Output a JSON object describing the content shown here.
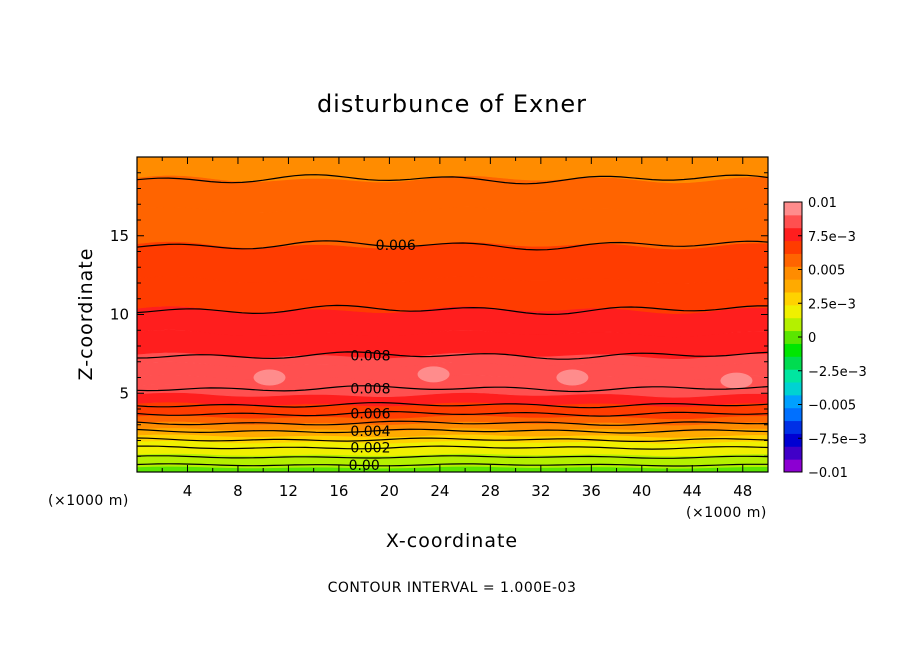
{
  "chart_data": {
    "type": "contour",
    "title": "disturbunce of Exner",
    "xlabel": "X-coordinate",
    "ylabel": "Z-coordinate",
    "x_unit_left": "(×1000 m)",
    "x_unit_right": "(×1000 m)",
    "xlim": [
      0,
      50
    ],
    "ylim": [
      0,
      20
    ],
    "xticks": [
      4,
      8,
      12,
      16,
      20,
      24,
      28,
      32,
      36,
      40,
      44,
      48
    ],
    "yticks": [
      5,
      10,
      15
    ],
    "footer": "CONTOUR INTERVAL = 1.000E-03",
    "contour_interval": 0.001,
    "colorbar": {
      "range": [
        -0.01,
        0.01
      ],
      "tick_values": [
        0.01,
        0.0075,
        0.005,
        0.0025,
        0,
        -0.0025,
        -0.005,
        -0.0075,
        -0.01
      ],
      "tick_labels": [
        "0.01",
        "7.5e−3",
        "0.005",
        "2.5e−3",
        "0",
        "−2.5e−3",
        "−0.005",
        "−7.5e−3",
        "−0.01"
      ],
      "colors": [
        "#8c00d2",
        "#4000c8",
        "#0000d2",
        "#0030e6",
        "#0070ff",
        "#00a0ff",
        "#00d2d2",
        "#00e6a0",
        "#00dc50",
        "#00e600",
        "#5ae600",
        "#b4f000",
        "#f0f000",
        "#ffd200",
        "#ffaa00",
        "#ff8c00",
        "#ff6400",
        "#ff3c00",
        "#ff1e1e",
        "#ff5050",
        "#ff8c8c"
      ]
    },
    "contour_labels": [
      {
        "text": "0.006",
        "x": 20.5,
        "z": 14.4
      },
      {
        "text": "0.008",
        "x": 18.5,
        "z": 7.4
      },
      {
        "text": "0.008",
        "x": 18.5,
        "z": 5.3
      },
      {
        "text": "0.006",
        "x": 18.5,
        "z": 3.7
      },
      {
        "text": "0.004",
        "x": 18.5,
        "z": 2.6
      },
      {
        "text": "0.002",
        "x": 18.5,
        "z": 1.55
      },
      {
        "text": "0.00",
        "x": 18.0,
        "z": 0.45
      }
    ],
    "max_spots": [
      {
        "x": 10.5,
        "z": 6.0
      },
      {
        "x": 23.5,
        "z": 6.2
      },
      {
        "x": 34.5,
        "z": 6.0
      },
      {
        "x": 47.5,
        "z": 5.8
      }
    ],
    "profile": [
      {
        "z": 0.0,
        "value": -0.0003
      },
      {
        "z": 0.3,
        "value": 0.0003
      },
      {
        "z": 0.7,
        "value": 0.0009
      },
      {
        "z": 1.1,
        "value": 0.0015
      },
      {
        "z": 1.5,
        "value": 0.002
      },
      {
        "z": 1.9,
        "value": 0.0027
      },
      {
        "z": 2.3,
        "value": 0.0035
      },
      {
        "z": 2.7,
        "value": 0.0043
      },
      {
        "z": 3.1,
        "value": 0.0051
      },
      {
        "z": 3.5,
        "value": 0.0059
      },
      {
        "z": 3.9,
        "value": 0.0066
      },
      {
        "z": 4.3,
        "value": 0.0073
      },
      {
        "z": 4.9,
        "value": 0.0079
      },
      {
        "z": 5.4,
        "value": 0.0083
      },
      {
        "z": 6.0,
        "value": 0.0085
      },
      {
        "z": 6.8,
        "value": 0.0083
      },
      {
        "z": 7.4,
        "value": 0.008
      },
      {
        "z": 8.8,
        "value": 0.0077
      },
      {
        "z": 10.3,
        "value": 0.0072
      },
      {
        "z": 12.2,
        "value": 0.0067
      },
      {
        "z": 14.4,
        "value": 0.006
      },
      {
        "z": 16.6,
        "value": 0.0055
      },
      {
        "z": 18.6,
        "value": 0.005
      },
      {
        "z": 20.0,
        "value": 0.0047
      }
    ],
    "contour_lines": [
      {
        "level": 0.0,
        "z": 0.45
      },
      {
        "level": 0.001,
        "z": 0.95
      },
      {
        "level": 0.002,
        "z": 1.55
      },
      {
        "level": 0.003,
        "z": 2.05
      },
      {
        "level": 0.004,
        "z": 2.6
      },
      {
        "level": 0.005,
        "z": 3.1
      },
      {
        "level": 0.006,
        "z": 3.7
      },
      {
        "level": 0.007,
        "z": 4.25
      },
      {
        "level": 0.008,
        "z": 5.3
      },
      {
        "level": 0.008,
        "z": 7.4
      },
      {
        "level": 0.007,
        "z": 10.3
      },
      {
        "level": 0.006,
        "z": 14.4
      },
      {
        "level": 0.005,
        "z": 18.6
      }
    ]
  }
}
